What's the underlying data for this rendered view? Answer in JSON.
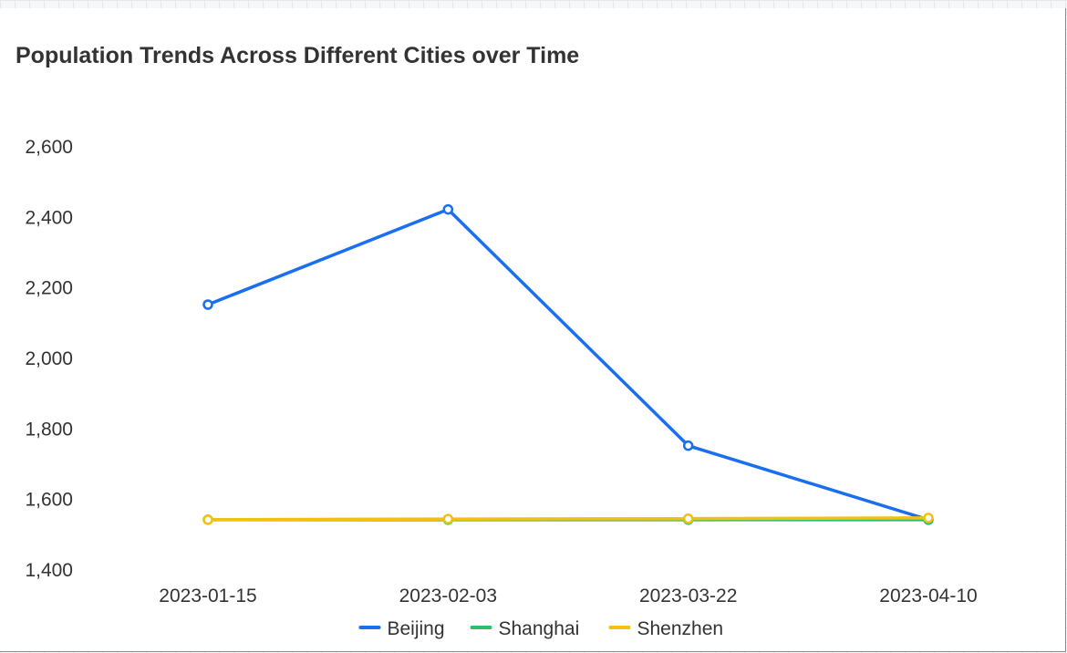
{
  "chart_data": {
    "type": "line",
    "title": "Population Trends Across Different Cities over Time",
    "xlabel": "",
    "ylabel": "",
    "categories": [
      "2023-01-15",
      "2023-02-03",
      "2023-03-22",
      "2023-04-10"
    ],
    "y_ticks": [
      "1,400",
      "1,600",
      "1,800",
      "2,000",
      "2,200",
      "2,400",
      "2,600"
    ],
    "y_tick_values": [
      1400,
      1600,
      1800,
      2000,
      2200,
      2400,
      2600
    ],
    "ylim": [
      1400,
      2600
    ],
    "grid": false,
    "legend_position": "bottom",
    "series": [
      {
        "name": "Beijing",
        "color": "#1a6ff0",
        "values": [
          2150,
          2420,
          1750,
          1540
        ]
      },
      {
        "name": "Shanghai",
        "color": "#2ebf6e",
        "values": [
          1540,
          1540,
          1540,
          1540
        ]
      },
      {
        "name": "Shenzhen",
        "color": "#f2c011",
        "values": [
          1540,
          1542,
          1543,
          1545
        ]
      }
    ]
  }
}
